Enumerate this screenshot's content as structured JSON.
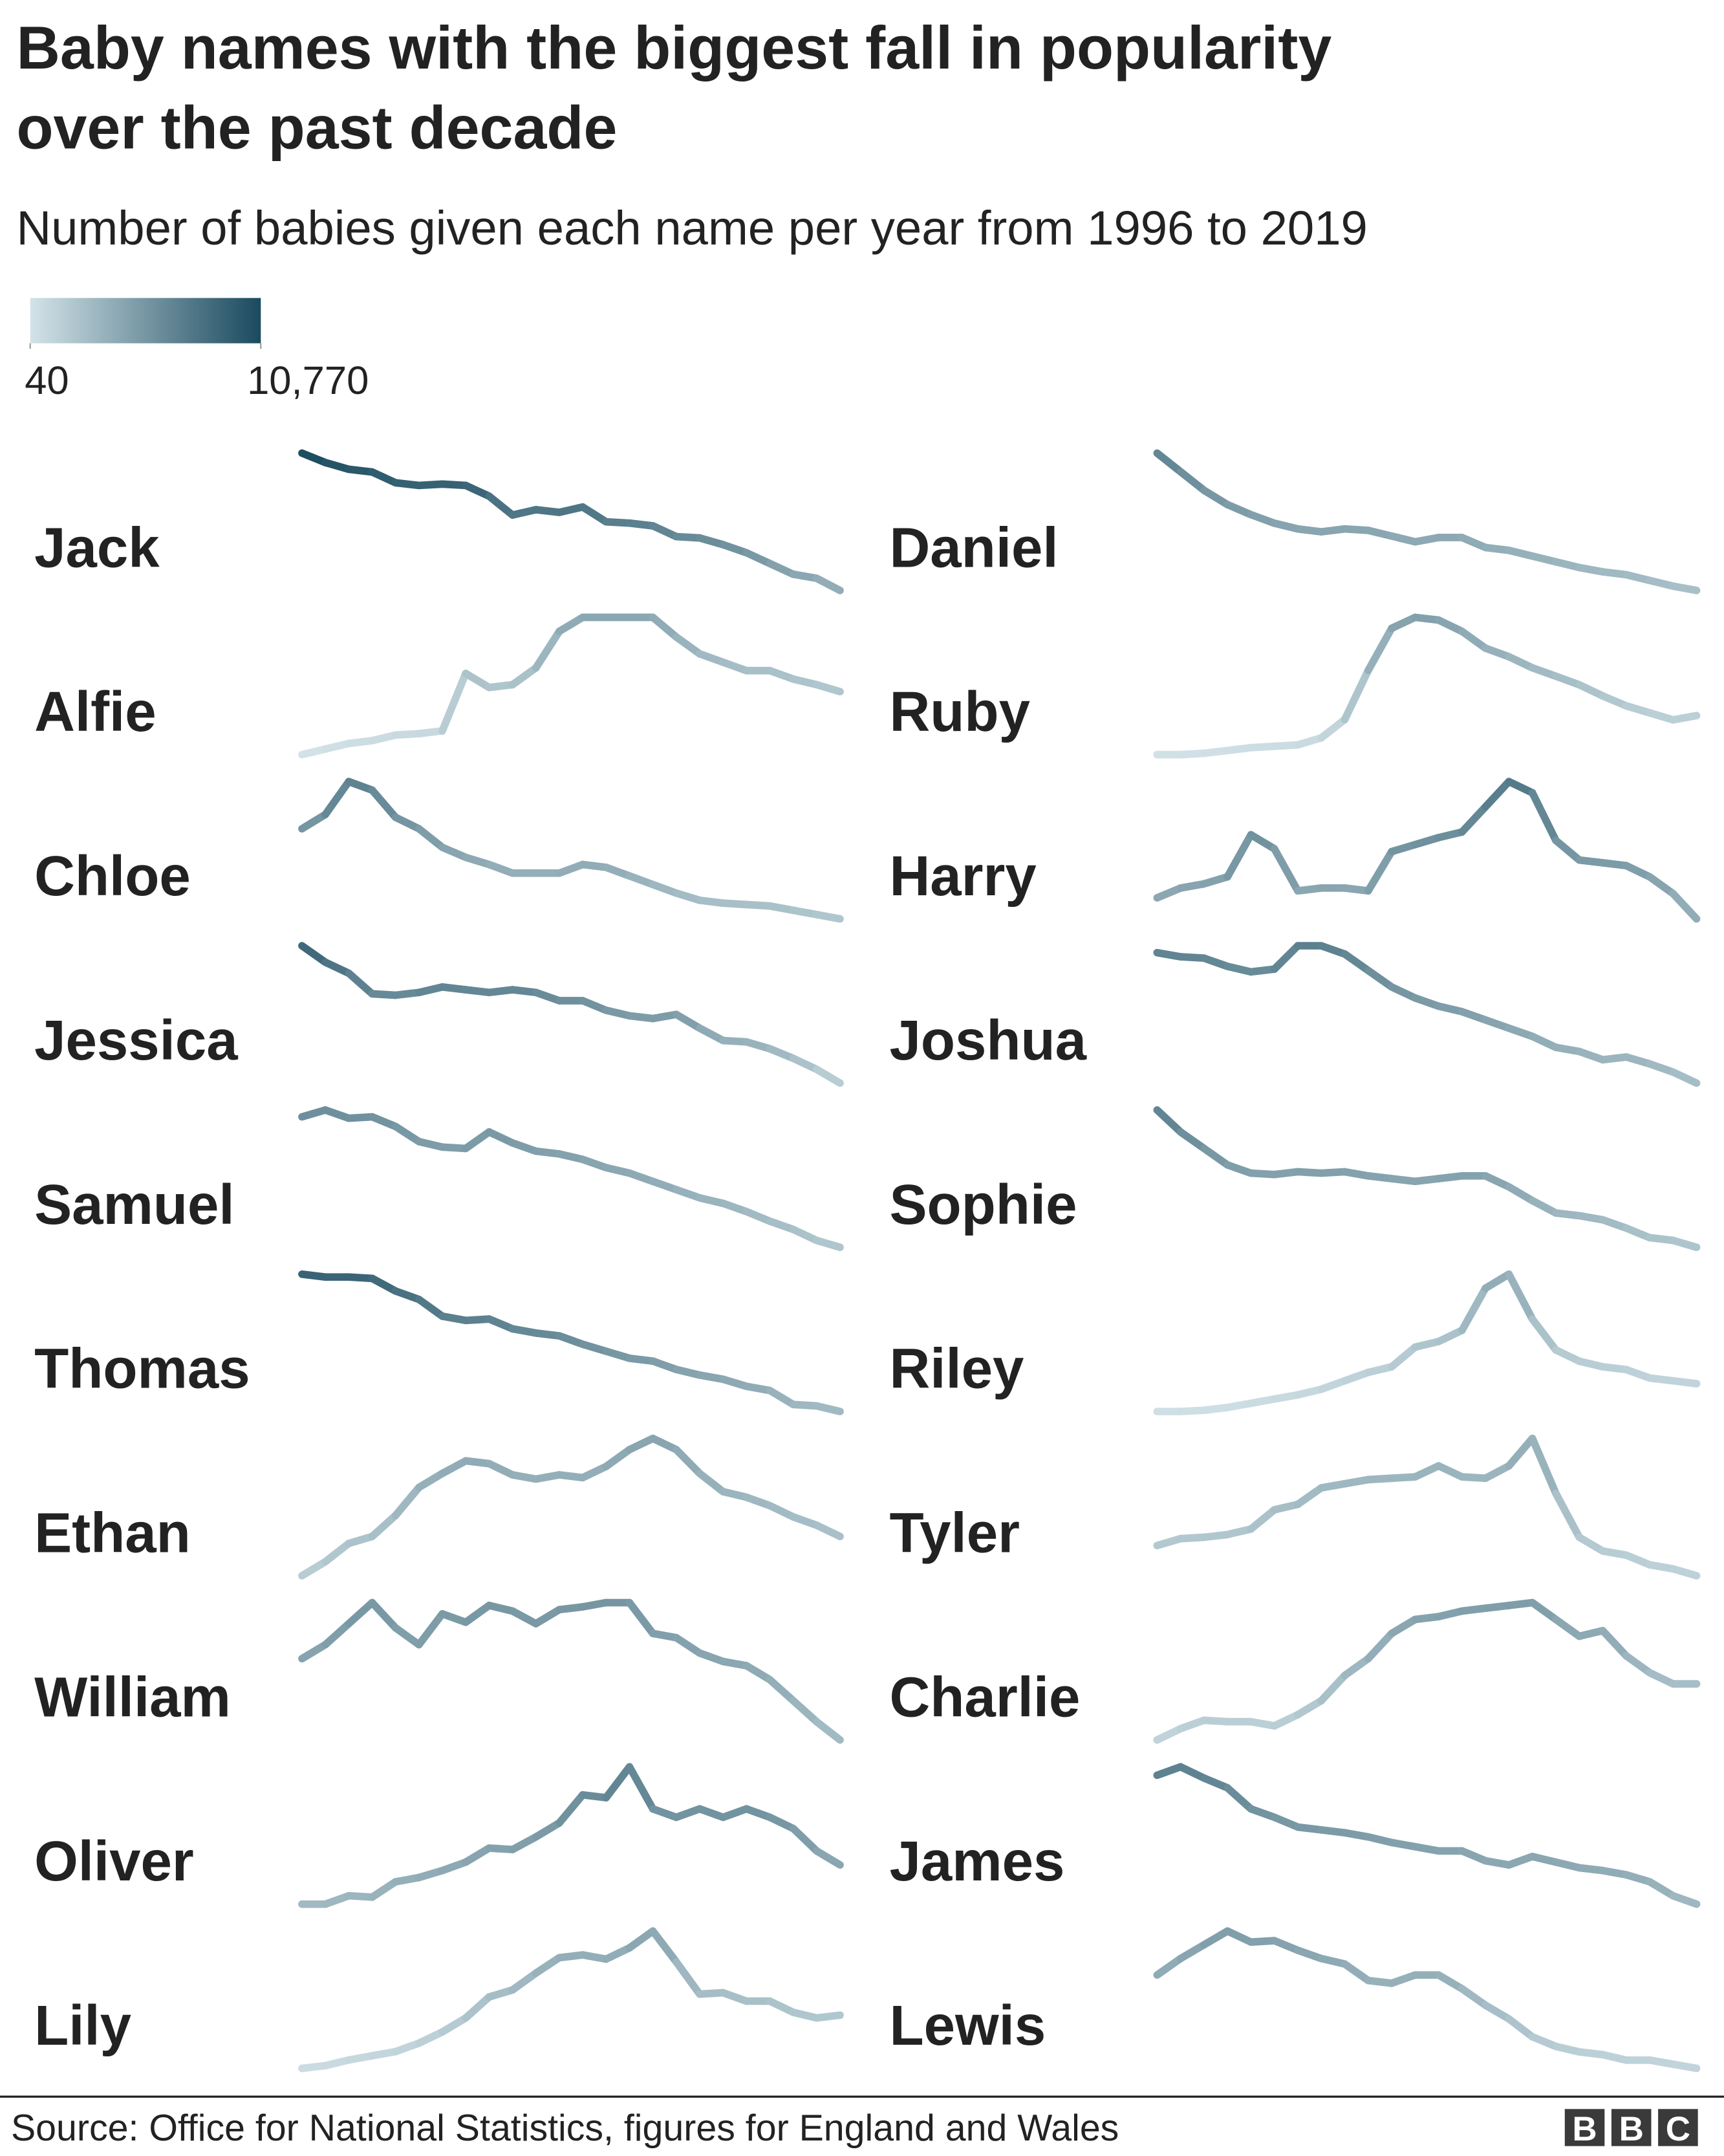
{
  "chart_data": {
    "type": "line",
    "title": [
      "Baby names with the biggest fall in popularity",
      "over the past decade"
    ],
    "subtitle": "Number of babies given each name per year from 1996 to 2019",
    "color_scale": {
      "lim": [
        40,
        10770
      ],
      "ticks": [
        40,
        {
          "value": 10770,
          "label": "10,770"
        }
      ],
      "colors": [
        "#d3e3e8",
        "#1a4a5e"
      ]
    },
    "series": [
      {
        "name": "Jack",
        "values": [
          10770,
          10270,
          9914,
          9771,
          9201,
          9058,
          9130,
          9058,
          8488,
          7490,
          7775,
          7632,
          7917,
          7133,
          7062,
          6919,
          6349,
          6277,
          5921,
          5493,
          4923,
          4353,
          4139,
          3497
        ]
      },
      {
        "name": "Daniel",
        "values": [
          6800,
          6215,
          5630,
          5180,
          4865,
          4595,
          4415,
          4325,
          4415,
          4370,
          4190,
          4010,
          4145,
          4145,
          3830,
          3740,
          3560,
          3380,
          3200,
          3065,
          2975,
          2795,
          2615,
          2480
        ]
      },
      {
        "name": "Alfie",
        "values": [
          40,
          210,
          380,
          465,
          635,
          675,
          760,
          2500,
          2075,
          2160,
          2670,
          3775,
          4200,
          4200,
          4200,
          4200,
          3605,
          3095,
          2840,
          2585,
          2585,
          2330,
          2160,
          1950
        ]
      },
      {
        "name": "Ruby",
        "values": [
          200,
          200,
          245,
          335,
          430,
          475,
          520,
          750,
          1350,
          2960,
          4340,
          4700,
          4610,
          4240,
          3690,
          3410,
          3045,
          2770,
          2490,
          2125,
          1800,
          1570,
          1340,
          1480
        ]
      },
      {
        "name": "Chloe",
        "values": [
          5284,
          5804,
          7000,
          6688,
          5700,
          5284,
          4608,
          4244,
          3984,
          3672,
          3672,
          3672,
          3984,
          3880,
          3568,
          3256,
          2944,
          2684,
          2580,
          2528,
          2476,
          2320,
          2164,
          2008
        ]
      },
      {
        "name": "Harry",
        "values": [
          4097,
          4384,
          4507,
          4712,
          5942,
          5532,
          4302,
          4384,
          4384,
          4302,
          5450,
          5655,
          5860,
          6024,
          6762,
          7500,
          7172,
          5778,
          5204,
          5122,
          5040,
          4712,
          4220,
          3482
        ]
      },
      {
        "name": "Jessica",
        "values": [
          9000,
          8076,
          7460,
          6305,
          6228,
          6382,
          6690,
          6536,
          6382,
          6536,
          6382,
          5920,
          5920,
          5381,
          5073,
          4919,
          5150,
          4380,
          3687,
          3610,
          3225,
          2686,
          2070,
          1300
        ]
      },
      {
        "name": "Joshua",
        "values": [
          6775,
          6640,
          6595,
          6325,
          6145,
          6235,
          7000,
          7000,
          6730,
          6190,
          5650,
          5290,
          5020,
          4840,
          4570,
          4300,
          4030,
          3670,
          3535,
          3265,
          3355,
          3130,
          2860,
          2500
        ]
      },
      {
        "name": "Samuel",
        "values": [
          5800,
          6000,
          5760,
          5800,
          5520,
          5080,
          4920,
          4880,
          5360,
          5040,
          4800,
          4720,
          4560,
          4320,
          4160,
          3920,
          3680,
          3440,
          3280,
          3040,
          2760,
          2520,
          2200,
          2000
        ]
      },
      {
        "name": "Sophie",
        "values": [
          7000,
          6200,
          5600,
          5000,
          4700,
          4650,
          4750,
          4700,
          4750,
          4600,
          4500,
          4400,
          4500,
          4600,
          4600,
          4200,
          3700,
          3250,
          3150,
          3000,
          2700,
          2350,
          2250,
          2000
        ]
      },
      {
        "name": "Thomas",
        "values": [
          9000,
          8874,
          8874,
          8811,
          8244,
          7866,
          7110,
          6921,
          6984,
          6543,
          6354,
          6228,
          5850,
          5535,
          5220,
          5094,
          4716,
          4464,
          4275,
          3960,
          3771,
          3141,
          3078,
          2826
        ]
      },
      {
        "name": "Riley",
        "values": [
          300,
          300,
          333,
          409,
          522,
          636,
          749,
          900,
          1127,
          1354,
          1505,
          2034,
          2186,
          2488,
          3622,
          4000,
          2790,
          1959,
          1656,
          1505,
          1430,
          1203,
          1127,
          1050
        ]
      },
      {
        "name": "Ethan",
        "values": [
          1500,
          1807,
          2205,
          2358,
          2817,
          3429,
          3735,
          4010,
          3949,
          3704,
          3613,
          3704,
          3643,
          3888,
          4255,
          4500,
          4255,
          3735,
          3337,
          3215,
          3031,
          2786,
          2603,
          2358
        ]
      },
      {
        "name": "Tyler",
        "values": [
          1816,
          1956,
          1984,
          2040,
          2152,
          2544,
          2656,
          2992,
          3076,
          3160,
          3188,
          3216,
          3440,
          3216,
          3188,
          3440,
          4000,
          2880,
          1984,
          1704,
          1620,
          1424,
          1340,
          1200
        ]
      },
      {
        "name": "William",
        "values": [
          4356,
          4642,
          5071,
          5500,
          4985,
          4642,
          5271,
          5100,
          5443,
          5328,
          5071,
          5357,
          5414,
          5500,
          5500,
          4871,
          4785,
          4470,
          4299,
          4213,
          3927,
          3498,
          3069,
          2697
        ]
      },
      {
        "name": "Charlie",
        "values": [
          1000,
          1328,
          1573,
          1532,
          1532,
          1410,
          1736,
          2144,
          2878,
          3368,
          4102,
          4510,
          4592,
          4755,
          4837,
          4918,
          5000,
          4510,
          4021,
          4184,
          3450,
          2960,
          2634,
          2634
        ]
      },
      {
        "name": "Oliver",
        "values": [
          3002,
          3002,
          3246,
          3206,
          3654,
          3777,
          3981,
          4226,
          4634,
          4593,
          4960,
          5368,
          6184,
          6102,
          7000,
          5776,
          5531,
          5776,
          5531,
          5776,
          5531,
          5205,
          4552,
          4144
        ]
      },
      {
        "name": "James",
        "values": [
          6755,
          7000,
          6674,
          6388,
          5776,
          5531,
          5246,
          5164,
          5082,
          4960,
          4797,
          4674,
          4552,
          4552,
          4266,
          4144,
          4389,
          4226,
          4062,
          3981,
          3858,
          3654,
          3246,
          3002
        ]
      },
      {
        "name": "Lily",
        "values": [
          502,
          583,
          746,
          869,
          991,
          1236,
          1562,
          1970,
          2582,
          2786,
          3276,
          3725,
          3806,
          3684,
          4010,
          4500,
          3602,
          2664,
          2705,
          2460,
          2460,
          2134,
          1970,
          2052
        ]
      },
      {
        "name": "Lewis",
        "values": [
          3720,
          4200,
          4600,
          5000,
          4680,
          4720,
          4440,
          4200,
          4040,
          3560,
          3480,
          3720,
          3720,
          3320,
          2840,
          2440,
          1920,
          1640,
          1480,
          1400,
          1240,
          1240,
          1120,
          1000
        ]
      }
    ],
    "source": "Source: Office for National Statistics, figures for England and Wales",
    "logo": [
      "B",
      "B",
      "C"
    ]
  }
}
